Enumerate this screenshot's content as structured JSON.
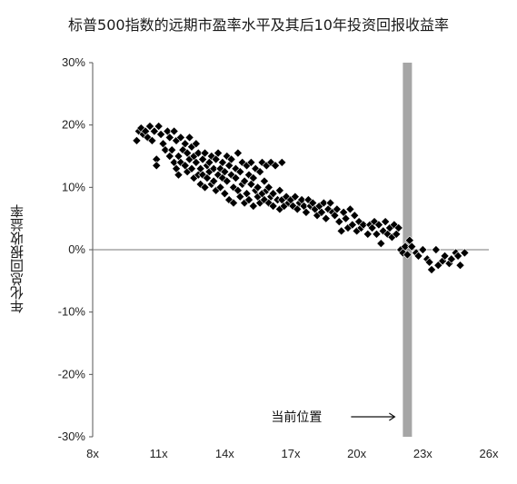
{
  "title": "标普500指数的远期市盈率水平及其后10年投资回报收益率",
  "chart_data": {
    "type": "scatter",
    "title": "标普500指数的远期市盈率水平及其后10年投资回报收益率",
    "xlabel": "",
    "ylabel": "年化总回报收益率",
    "xlim": [
      8,
      26
    ],
    "ylim": [
      -30,
      30
    ],
    "x_ticks": [
      "8x",
      "11x",
      "14x",
      "17x",
      "20x",
      "23x",
      "26x"
    ],
    "x_tick_values": [
      8,
      11,
      14,
      17,
      20,
      23,
      26
    ],
    "y_ticks": [
      "30%",
      "20%",
      "10%",
      "0%",
      "-10%",
      "-20%",
      "-30%"
    ],
    "y_tick_values": [
      30,
      20,
      10,
      0,
      -10,
      -20,
      -30
    ],
    "grid": false,
    "marker_color": "#000000",
    "current_marker": {
      "label": "当前位置",
      "x": 22.3,
      "color": "#a6a6a6"
    },
    "points": [
      [
        10.0,
        17.5
      ],
      [
        10.1,
        19.0
      ],
      [
        10.2,
        19.5
      ],
      [
        10.3,
        18.5
      ],
      [
        10.4,
        19.0
      ],
      [
        10.5,
        18.0
      ],
      [
        10.6,
        19.8
      ],
      [
        10.7,
        17.5
      ],
      [
        10.8,
        19.0
      ],
      [
        10.9,
        14.5
      ],
      [
        10.9,
        13.5
      ],
      [
        11.0,
        19.8
      ],
      [
        11.1,
        18.5
      ],
      [
        11.2,
        17.0
      ],
      [
        11.3,
        16.0
      ],
      [
        11.4,
        19.0
      ],
      [
        11.5,
        18.0
      ],
      [
        11.5,
        15.0
      ],
      [
        11.6,
        16.0
      ],
      [
        11.7,
        19.0
      ],
      [
        11.7,
        14.0
      ],
      [
        11.8,
        17.5
      ],
      [
        11.8,
        13.0
      ],
      [
        11.9,
        15.0
      ],
      [
        11.9,
        12.0
      ],
      [
        12.0,
        18.0
      ],
      [
        12.0,
        14.0
      ],
      [
        12.1,
        16.0
      ],
      [
        12.2,
        13.5
      ],
      [
        12.2,
        17.0
      ],
      [
        12.3,
        15.5
      ],
      [
        12.3,
        12.5
      ],
      [
        12.4,
        18.0
      ],
      [
        12.4,
        14.5
      ],
      [
        12.5,
        16.5
      ],
      [
        12.5,
        13.0
      ],
      [
        12.6,
        15.0
      ],
      [
        12.6,
        11.5
      ],
      [
        12.7,
        17.0
      ],
      [
        12.7,
        14.0
      ],
      [
        12.8,
        12.0
      ],
      [
        12.8,
        15.5
      ],
      [
        12.9,
        13.0
      ],
      [
        12.9,
        10.5
      ],
      [
        13.0,
        14.5
      ],
      [
        13.0,
        12.0
      ],
      [
        13.1,
        15.5
      ],
      [
        13.1,
        10.0
      ],
      [
        13.2,
        13.5
      ],
      [
        13.2,
        11.5
      ],
      [
        13.3,
        14.0
      ],
      [
        13.3,
        12.5
      ],
      [
        13.4,
        10.5
      ],
      [
        13.4,
        15.0
      ],
      [
        13.5,
        13.0
      ],
      [
        13.5,
        11.0
      ],
      [
        13.6,
        14.5
      ],
      [
        13.6,
        9.5
      ],
      [
        13.7,
        12.0
      ],
      [
        13.7,
        15.5
      ],
      [
        13.8,
        13.0
      ],
      [
        13.8,
        10.0
      ],
      [
        13.9,
        11.5
      ],
      [
        13.9,
        14.0
      ],
      [
        14.0,
        12.5
      ],
      [
        14.0,
        9.0
      ],
      [
        14.1,
        15.0
      ],
      [
        14.1,
        11.0
      ],
      [
        14.2,
        13.5
      ],
      [
        14.2,
        8.0
      ],
      [
        14.3,
        12.0
      ],
      [
        14.3,
        14.5
      ],
      [
        14.4,
        10.0
      ],
      [
        14.4,
        7.5
      ],
      [
        14.5,
        13.0
      ],
      [
        14.5,
        11.5
      ],
      [
        14.6,
        15.5
      ],
      [
        14.6,
        9.5
      ],
      [
        14.7,
        12.5
      ],
      [
        14.7,
        8.5
      ],
      [
        14.8,
        14.0
      ],
      [
        14.8,
        10.5
      ],
      [
        14.9,
        11.0
      ],
      [
        14.9,
        7.5
      ],
      [
        15.0,
        13.5
      ],
      [
        15.0,
        9.0
      ],
      [
        15.1,
        12.0
      ],
      [
        15.1,
        8.0
      ],
      [
        15.2,
        10.5
      ],
      [
        15.2,
        14.0
      ],
      [
        15.3,
        11.5
      ],
      [
        15.3,
        7.0
      ],
      [
        15.4,
        13.0
      ],
      [
        15.4,
        9.5
      ],
      [
        15.5,
        10.0
      ],
      [
        15.5,
        8.5
      ],
      [
        15.6,
        12.5
      ],
      [
        15.6,
        7.5
      ],
      [
        15.7,
        9.0
      ],
      [
        15.7,
        14.0
      ],
      [
        15.8,
        11.0
      ],
      [
        15.8,
        8.0
      ],
      [
        15.9,
        13.5
      ],
      [
        15.9,
        9.5
      ],
      [
        16.0,
        10.0
      ],
      [
        16.0,
        7.5
      ],
      [
        16.1,
        14.0
      ],
      [
        16.1,
        8.5
      ],
      [
        16.2,
        9.0
      ],
      [
        16.2,
        7.0
      ],
      [
        16.3,
        13.5
      ],
      [
        16.4,
        8.0
      ],
      [
        16.5,
        9.5
      ],
      [
        16.5,
        6.5
      ],
      [
        16.6,
        14.0
      ],
      [
        16.6,
        8.0
      ],
      [
        16.7,
        7.0
      ],
      [
        16.8,
        8.5
      ],
      [
        16.9,
        7.5
      ],
      [
        17.0,
        8.0
      ],
      [
        17.1,
        7.0
      ],
      [
        17.2,
        8.5
      ],
      [
        17.3,
        6.5
      ],
      [
        17.4,
        7.5
      ],
      [
        17.5,
        8.0
      ],
      [
        17.6,
        7.0
      ],
      [
        17.7,
        6.0
      ],
      [
        17.8,
        8.0
      ],
      [
        17.9,
        7.0
      ],
      [
        18.0,
        7.5
      ],
      [
        18.1,
        6.5
      ],
      [
        18.2,
        5.5
      ],
      [
        18.3,
        7.0
      ],
      [
        18.4,
        6.0
      ],
      [
        18.5,
        7.5
      ],
      [
        18.6,
        5.0
      ],
      [
        18.7,
        6.5
      ],
      [
        18.8,
        7.5
      ],
      [
        18.9,
        6.0
      ],
      [
        19.0,
        5.5
      ],
      [
        19.1,
        6.5
      ],
      [
        19.2,
        4.5
      ],
      [
        19.3,
        3.0
      ],
      [
        19.4,
        6.0
      ],
      [
        19.5,
        5.0
      ],
      [
        19.6,
        3.5
      ],
      [
        19.7,
        6.5
      ],
      [
        19.8,
        4.0
      ],
      [
        19.9,
        5.5
      ],
      [
        20.0,
        3.0
      ],
      [
        20.1,
        4.5
      ],
      [
        20.2,
        3.5
      ],
      [
        20.3,
        4.0
      ],
      [
        20.5,
        2.5
      ],
      [
        20.6,
        4.0
      ],
      [
        20.7,
        3.5
      ],
      [
        20.8,
        4.5
      ],
      [
        20.9,
        2.5
      ],
      [
        21.0,
        4.0
      ],
      [
        21.1,
        1.0
      ],
      [
        21.2,
        3.0
      ],
      [
        21.3,
        4.5
      ],
      [
        21.4,
        2.5
      ],
      [
        21.5,
        3.5
      ],
      [
        21.6,
        2.0
      ],
      [
        21.7,
        4.0
      ],
      [
        21.8,
        2.5
      ],
      [
        21.9,
        3.5
      ],
      [
        22.0,
        0.0
      ],
      [
        22.1,
        -0.5
      ],
      [
        22.2,
        0.5
      ],
      [
        22.3,
        -0.8
      ],
      [
        22.4,
        1.5
      ],
      [
        22.5,
        0.5
      ],
      [
        22.7,
        -0.5
      ],
      [
        22.8,
        -1.0
      ],
      [
        23.0,
        0.0
      ],
      [
        23.2,
        -1.5
      ],
      [
        23.3,
        -2.0
      ],
      [
        23.4,
        -3.2
      ],
      [
        23.6,
        0.0
      ],
      [
        23.7,
        -2.5
      ],
      [
        23.9,
        -1.8
      ],
      [
        24.0,
        -1.0
      ],
      [
        24.2,
        -2.2
      ],
      [
        24.3,
        -1.5
      ],
      [
        24.5,
        -0.5
      ],
      [
        24.6,
        -1.0
      ],
      [
        24.7,
        -2.5
      ],
      [
        24.9,
        -0.5
      ]
    ]
  }
}
